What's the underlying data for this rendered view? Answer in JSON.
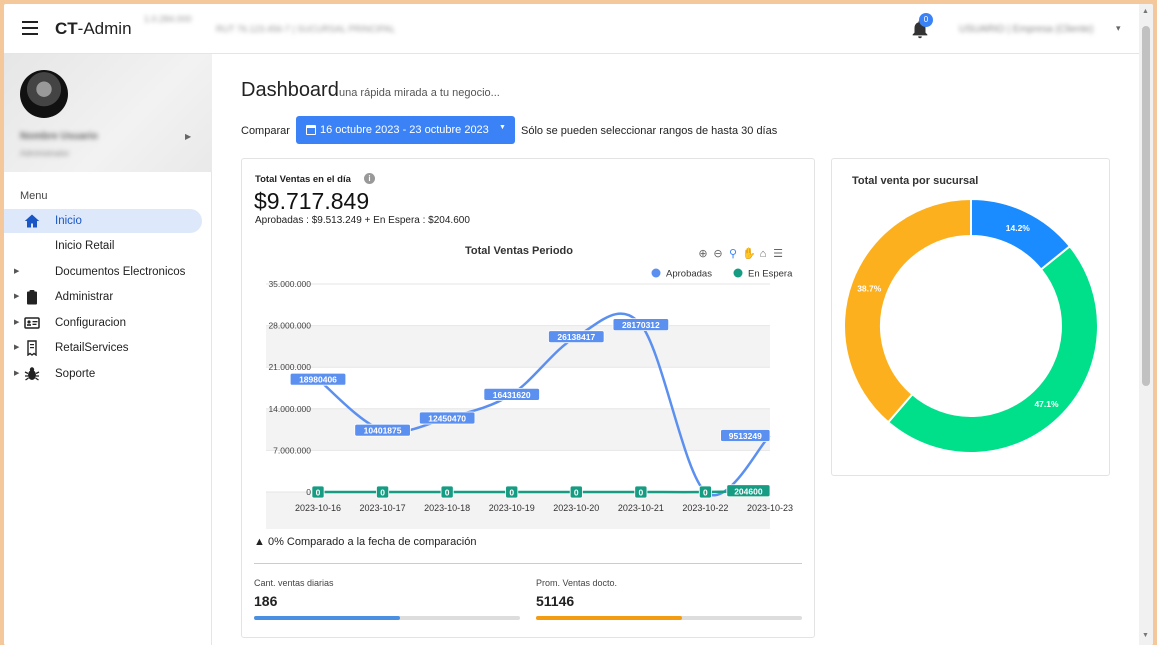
{
  "header": {
    "brand_bold": "CT",
    "brand_rest": "-Admin",
    "info_1": "1.0.284.000",
    "info_2": "RUT 76.123.456-7 | SUCURSAL PRINCIPAL",
    "notification_count": "0",
    "user_label": "USUARIO | Empresa (Cliente)"
  },
  "sidebar": {
    "profile_name": "Nombre Usuario",
    "profile_role": "Administrador",
    "menu_title": "Menu",
    "items": [
      {
        "label": "Inicio",
        "icon": "home-icon",
        "active": true
      },
      {
        "label": "Inicio Retail",
        "icon": "",
        "active": false
      },
      {
        "label": "Documentos Electronicos",
        "icon": "",
        "active": false
      },
      {
        "label": "Administrar",
        "icon": "clipboard-icon",
        "active": false
      },
      {
        "label": "Configuracion",
        "icon": "id-card-icon",
        "active": false
      },
      {
        "label": "RetailServices",
        "icon": "receipt-icon",
        "active": false
      },
      {
        "label": "Soporte",
        "icon": "bug-icon",
        "active": false
      }
    ]
  },
  "page": {
    "title": "Dashboard",
    "subtitle": "una rápida mirada a tu negocio...",
    "compare_label": "Comparar",
    "date_range": "16 octubre 2023 - 23 octubre 2023",
    "range_note": "Sólo se pueden seleccionar rangos de hasta 30 días"
  },
  "sales_card": {
    "kpi_title": "Total Ventas en el día",
    "kpi_value": "$9.717.849",
    "kpi_sub": "Aprobadas : $9.513.249 + En Espera : $204.600",
    "comparison_note": "0% Comparado a la fecha de comparación",
    "stat_1_label": "Cant. ventas diarias",
    "stat_1_value": "186",
    "stat_1_progress": 0.55,
    "stat_1_color": "#4a90e2",
    "stat_2_label": "Prom. Ventas docto.",
    "stat_2_value": "51146",
    "stat_2_progress": 0.55,
    "stat_2_color": "#f39c12"
  },
  "branch_card": {
    "title": "Total venta por sucursal"
  },
  "colors": {
    "primary": "#3b82f6",
    "approved": "#5b8ff0",
    "pending": "#169c83",
    "donut_blue": "#1a8cff",
    "donut_green": "#00e08a",
    "donut_orange": "#fdb01d"
  },
  "chart_data": [
    {
      "type": "line",
      "title": "Total Ventas Periodo",
      "x": [
        "2023-10-16",
        "2023-10-17",
        "2023-10-18",
        "2023-10-19",
        "2023-10-20",
        "2023-10-21",
        "2023-10-22",
        "2023-10-23"
      ],
      "series": [
        {
          "name": "Aprobadas",
          "values": [
            18980406,
            10401875,
            12450470,
            16431620,
            26138417,
            28170312,
            0,
            9513249
          ]
        },
        {
          "name": "En Espera",
          "values": [
            0,
            0,
            0,
            0,
            0,
            0,
            0,
            204600
          ]
        }
      ],
      "yticks": [
        "35.000.000",
        "28.000.000",
        "21.000.000",
        "14.000.000",
        "7.000.000",
        "0"
      ],
      "ylim": [
        0,
        35000000
      ],
      "legend_position": "top-right",
      "grid": true
    },
    {
      "type": "pie",
      "title": "Total venta por sucursal",
      "labels": [
        "14.2%",
        "47.1%",
        "38.7%"
      ],
      "values": [
        14.2,
        47.1,
        38.7
      ],
      "donut": true
    }
  ]
}
